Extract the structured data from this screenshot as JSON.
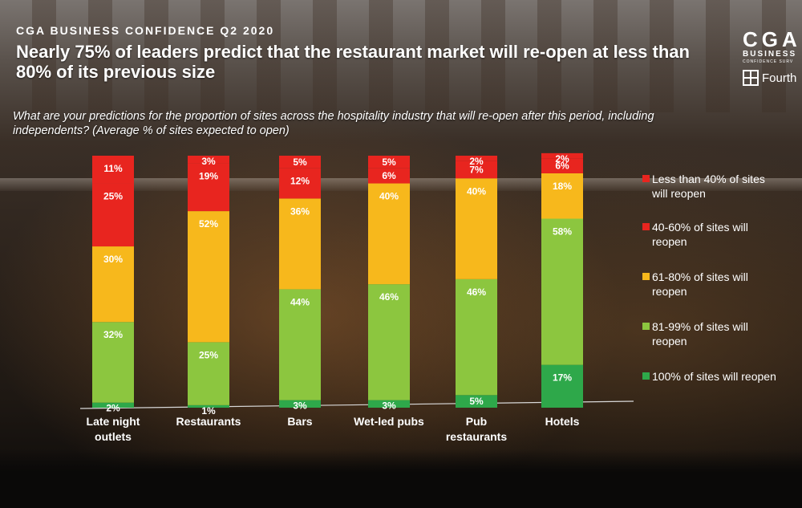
{
  "header": {
    "kicker": "CGA BUSINESS CONFIDENCE Q2 2020",
    "headline": "Nearly 75% of leaders predict that the restaurant market will re-open at less than 80% of its previous size",
    "question": "What are your predictions for the proportion of sites across the hospitality industry that will re-open after this period, including independents? (Average % of sites expected to open)"
  },
  "brand": {
    "cga": "CGA",
    "business": "BUSINESS",
    "confidence": "CONFIDENCE SURV",
    "fourth": "Fourth"
  },
  "colors": {
    "red": "#e8251f",
    "orange": "#f7b81c",
    "lightgreen": "#8cc63f",
    "green": "#2ea84a"
  },
  "chart_data": {
    "type": "bar",
    "stacked": true,
    "title": "",
    "xlabel": "",
    "ylabel": "",
    "ylim": [
      0,
      100
    ],
    "grid": false,
    "legend_position": "right",
    "categories": [
      [
        "Late night",
        "outlets"
      ],
      [
        "Restaurants"
      ],
      [
        "Bars"
      ],
      [
        "Wet-led pubs"
      ],
      [
        "Pub",
        "restaurants"
      ],
      [
        "Hotels"
      ]
    ],
    "series": [
      {
        "name": "100% of sites will reopen",
        "color": "#2ea84a",
        "values": [
          2,
          1,
          3,
          3,
          5,
          17
        ]
      },
      {
        "name": "81-99% of sites will reopen",
        "color": "#8cc63f",
        "values": [
          32,
          25,
          44,
          46,
          46,
          58
        ]
      },
      {
        "name": "61-80% of sites will reopen",
        "color": "#f7b81c",
        "values": [
          30,
          52,
          36,
          40,
          40,
          18
        ]
      },
      {
        "name": "40-60% of sites will reopen",
        "color": "#e8251f",
        "values": [
          25,
          19,
          12,
          6,
          7,
          6
        ]
      },
      {
        "name": "Less than 40% of sites will reopen",
        "color": "#e8251f",
        "values": [
          11,
          3,
          5,
          5,
          2,
          2
        ]
      }
    ],
    "legend": [
      {
        "lines": [
          "Less than 40% of sites",
          "will reopen"
        ],
        "color": "#e8251f"
      },
      {
        "lines": [
          "40-60% of sites will",
          "reopen"
        ],
        "color": "#e8251f"
      },
      {
        "lines": [
          "61-80% of sites will",
          "reopen"
        ],
        "color": "#f7b81c"
      },
      {
        "lines": [
          "81-99% of sites will",
          "reopen"
        ],
        "color": "#8cc63f"
      },
      {
        "lines": [
          "100% of sites will reopen"
        ],
        "color": "#2ea84a"
      }
    ]
  }
}
